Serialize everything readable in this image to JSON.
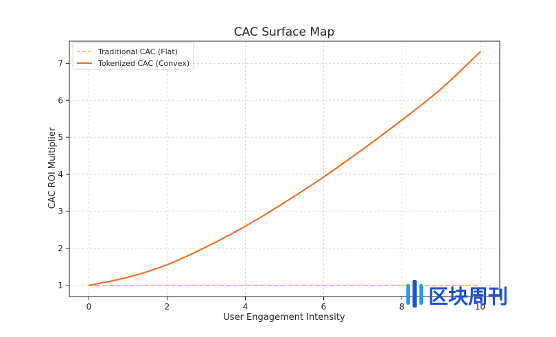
{
  "chart_data": {
    "type": "line",
    "title": "CAC Surface Map",
    "xlabel": "User Engagement Intensity",
    "ylabel": "CAC ROI Multiplier",
    "xlim": [
      -0.5,
      10.5
    ],
    "ylim": [
      0.7,
      7.6
    ],
    "xticks": [
      0,
      2,
      4,
      6,
      8,
      10
    ],
    "yticks": [
      1,
      2,
      3,
      4,
      5,
      6,
      7
    ],
    "grid": true,
    "legend_position": "top-left",
    "series": [
      {
        "name": "Traditional CAC (Flat)",
        "style": "dashed",
        "color": "#f5b642",
        "x": [
          0,
          2,
          4,
          6,
          8,
          10
        ],
        "y": [
          1,
          1,
          1,
          1,
          1,
          1
        ]
      },
      {
        "name": "Tokenized CAC (Convex)",
        "style": "solid",
        "color": "#e8712a",
        "x": [
          0,
          1,
          2,
          3,
          4,
          5,
          6,
          7,
          8,
          9,
          10
        ],
        "y": [
          1.0,
          1.22,
          1.56,
          2.04,
          2.6,
          3.24,
          3.93,
          4.68,
          5.47,
          6.31,
          7.31
        ]
      }
    ]
  },
  "watermark": {
    "text": "区块周刊",
    "bar_colors": [
      "#1aa0e8",
      "#1d4fd8"
    ]
  }
}
